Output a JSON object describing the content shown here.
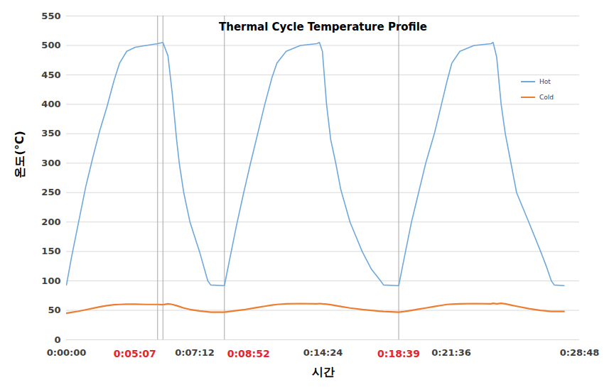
{
  "chart_data": {
    "type": "line",
    "title": "Thermal Cycle Temperature Profile",
    "xlabel": "시간",
    "ylabel": "온도(°C)",
    "x": [
      0,
      17,
      41,
      65,
      89,
      112,
      136,
      160,
      179,
      203,
      232,
      268,
      307,
      325,
      342,
      356,
      371,
      380,
      395,
      416,
      448,
      476,
      486,
      532,
      549,
      573,
      597,
      620,
      644,
      668,
      692,
      709,
      740,
      788,
      843,
      852,
      862,
      876,
      890,
      907,
      924,
      955,
      996,
      1027,
      1058,
      1068,
      1119,
      1138,
      1162,
      1186,
      1210,
      1239,
      1263,
      1282,
      1298,
      1325,
      1373,
      1430,
      1437,
      1449,
      1464,
      1478,
      1497,
      1516,
      1557,
      1597,
      1616,
      1633,
      1643,
      1676
    ],
    "series": [
      {
        "name": "Hot",
        "color": "#6fa8dc",
        "values": [
          93,
          140,
          200,
          260,
          310,
          355,
          395,
          440,
          470,
          490,
          497,
          500,
          503,
          505,
          482,
          420,
          340,
          300,
          250,
          200,
          150,
          100,
          93,
          92,
          135,
          195,
          250,
          300,
          350,
          400,
          445,
          470,
          490,
          500,
          503,
          505,
          490,
          400,
          340,
          300,
          255,
          200,
          150,
          120,
          100,
          93,
          92,
          140,
          200,
          250,
          300,
          350,
          400,
          440,
          470,
          490,
          500,
          503,
          505,
          480,
          400,
          350,
          300,
          250,
          200,
          150,
          125,
          100,
          93,
          92
        ]
      },
      {
        "name": "Cold",
        "color": "#ed7d31",
        "values": [
          45,
          46.5,
          48.5,
          51,
          53.5,
          56,
          58,
          59.5,
          60,
          60.5,
          60.5,
          60,
          60,
          59.5,
          61,
          60,
          58,
          56.5,
          54,
          51.5,
          49,
          47.5,
          47,
          47,
          48,
          49.5,
          51,
          53,
          55,
          57,
          59,
          60,
          61,
          61.5,
          61,
          61.5,
          61,
          60.5,
          59.5,
          58,
          56.5,
          54,
          51.5,
          50,
          48.5,
          48,
          47,
          48,
          50,
          52,
          54,
          56.5,
          58.5,
          60,
          60.5,
          61,
          61.5,
          61,
          62,
          61,
          62,
          61,
          59,
          57,
          53,
          50,
          49,
          48,
          48,
          48
        ]
      }
    ],
    "xlim": [
      0,
      1728
    ],
    "xticks": [
      {
        "value": 0,
        "label": "0:00:00"
      },
      {
        "value": 432,
        "label": "0:07:12"
      },
      {
        "value": 864,
        "label": "0:14:24"
      },
      {
        "value": 1296,
        "label": "0:21:36"
      },
      {
        "value": 1728,
        "label": "0:28:48"
      }
    ],
    "ylim": [
      0,
      550
    ],
    "yticks": [
      0,
      50,
      100,
      150,
      200,
      250,
      300,
      350,
      400,
      450,
      500,
      550
    ],
    "vlines": [
      307,
      325,
      532,
      1119
    ],
    "annotations": [
      {
        "x": 307,
        "label": "0:05:07",
        "color": "#e8242b"
      },
      {
        "x": 532,
        "label": "0:08:52",
        "color": "#e8242b"
      },
      {
        "x": 1119,
        "label": "0:18:39",
        "color": "#e8242b"
      }
    ],
    "grid": true,
    "legend": "right"
  }
}
